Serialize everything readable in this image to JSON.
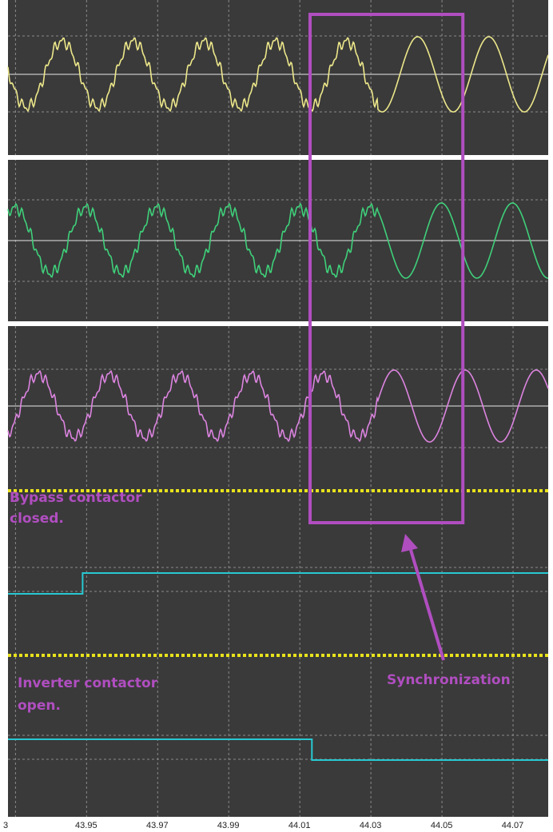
{
  "colors": {
    "background": "#3a3a3a",
    "outer": "#ffffff",
    "grid": "#8a8a8a",
    "divider": "#ffffff",
    "digital_divider": "#e8e21c",
    "phase_a": "#ece78a",
    "phase_b": "#3fd07a",
    "phase_c": "#dc84e0",
    "digital": "#28c8d2",
    "annotation": "#b04ec0"
  },
  "chart_data": {
    "type": "line",
    "x_ticks": [
      "3",
      "43.95",
      "43.97",
      "43.99",
      "44.01",
      "44.03",
      "44.05",
      "44.07"
    ],
    "xlim": [
      43.928,
      44.08
    ],
    "grid": true,
    "series": [
      {
        "key": "phase_a",
        "kind": "analog",
        "cycle_s": 0.02,
        "phase_deg": 175,
        "distorted_until": 44.032
      },
      {
        "key": "phase_b",
        "kind": "analog",
        "cycle_s": 0.02,
        "phase_deg": 55,
        "distorted_until": 44.032
      },
      {
        "key": "phase_c",
        "kind": "analog",
        "cycle_s": 0.02,
        "phase_deg": -65,
        "distorted_until": 44.032
      },
      {
        "key": "bypass",
        "kind": "digital",
        "x": [
          43.928,
          43.949,
          43.949,
          44.08
        ],
        "y": [
          0,
          0,
          1,
          1
        ]
      },
      {
        "key": "inverter",
        "kind": "digital",
        "x": [
          43.928,
          44.0135,
          44.0135,
          44.08
        ],
        "y": [
          1,
          1,
          0,
          0
        ]
      }
    ],
    "annotations": {
      "bypass_line1": "Bypass contactor",
      "bypass_line2": "closed.",
      "inverter_line1": "Inverter contactor",
      "inverter_line2": "open.",
      "sync_label": "Synchronization"
    },
    "sync_window": [
      44.013,
      44.056
    ]
  }
}
